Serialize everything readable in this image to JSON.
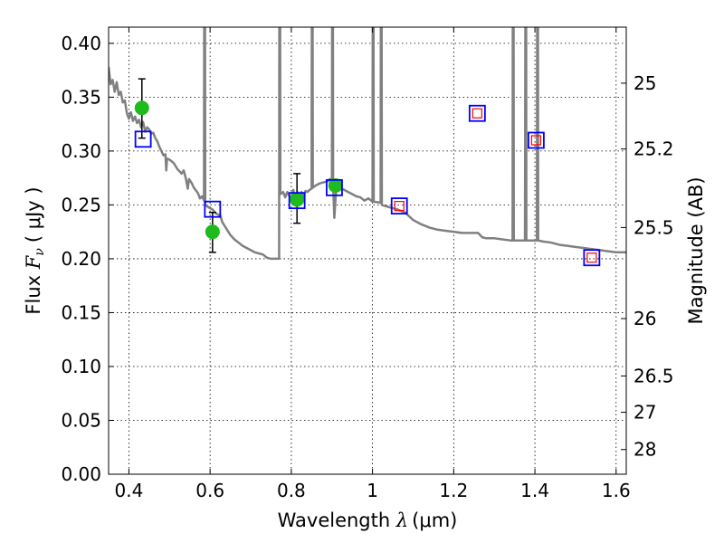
{
  "chart_data": {
    "type": "scatter",
    "xlabel": "Wavelength  λ (μm)",
    "xlabel_parts": {
      "text": "Wavelength  ",
      "symbol": "λ",
      "unit": "(μm)"
    },
    "ylabel": "Flux  Fν  ( μJy )",
    "ylabel_parts": {
      "text": "Flux  ",
      "symbol": "F",
      "sub": "ν",
      "unit": "( μJy )"
    },
    "y2label": "Magnitude (AB)",
    "xlim": [
      0.35,
      1.625
    ],
    "ylim": [
      0.0,
      0.415
    ],
    "grid": true,
    "xticks": [
      {
        "value": 0.4,
        "label": "0.4"
      },
      {
        "value": 0.6,
        "label": "0.6"
      },
      {
        "value": 0.8,
        "label": "0.8"
      },
      {
        "value": 1.0,
        "label": "1"
      },
      {
        "value": 1.2,
        "label": "1.2"
      },
      {
        "value": 1.4,
        "label": "1.4"
      },
      {
        "value": 1.6,
        "label": "1.6"
      }
    ],
    "yticks": [
      {
        "value": 0.0,
        "label": "0.00"
      },
      {
        "value": 0.05,
        "label": "0.05"
      },
      {
        "value": 0.1,
        "label": "0.10"
      },
      {
        "value": 0.15,
        "label": "0.15"
      },
      {
        "value": 0.2,
        "label": "0.20"
      },
      {
        "value": 0.25,
        "label": "0.25"
      },
      {
        "value": 0.3,
        "label": "0.30"
      },
      {
        "value": 0.35,
        "label": "0.35"
      },
      {
        "value": 0.4,
        "label": "0.40"
      }
    ],
    "y2ticks": [
      {
        "label": "25",
        "flux": 0.363
      },
      {
        "label": "25.2",
        "flux": 0.3019
      },
      {
        "label": "25.5",
        "flux": 0.229
      },
      {
        "label": "26",
        "flux": 0.1445
      },
      {
        "label": "26.5",
        "flux": 0.0912
      },
      {
        "label": "27",
        "flux": 0.0575
      },
      {
        "label": "28",
        "flux": 0.0229
      }
    ],
    "series": [
      {
        "name": "model-spectrum",
        "kind": "line",
        "color": "#808080",
        "points": [
          [
            0.35,
            0.378
          ],
          [
            0.355,
            0.362
          ],
          [
            0.36,
            0.366
          ],
          [
            0.365,
            0.355
          ],
          [
            0.37,
            0.364
          ],
          [
            0.375,
            0.352
          ],
          [
            0.38,
            0.355
          ],
          [
            0.385,
            0.345
          ],
          [
            0.39,
            0.347
          ],
          [
            0.395,
            0.335
          ],
          [
            0.4,
            0.33
          ],
          [
            0.405,
            0.336
          ],
          [
            0.41,
            0.328
          ],
          [
            0.415,
            0.332
          ],
          [
            0.42,
            0.326
          ],
          [
            0.425,
            0.329
          ],
          [
            0.43,
            0.322
          ],
          [
            0.435,
            0.327
          ],
          [
            0.44,
            0.318
          ],
          [
            0.445,
            0.322
          ],
          [
            0.45,
            0.32
          ],
          [
            0.455,
            0.316
          ],
          [
            0.46,
            0.317
          ],
          [
            0.465,
            0.312
          ],
          [
            0.47,
            0.309
          ],
          [
            0.475,
            0.304
          ],
          [
            0.48,
            0.3
          ],
          [
            0.485,
            0.296
          ],
          [
            0.49,
            0.297
          ],
          [
            0.492,
            0.282
          ],
          [
            0.494,
            0.293
          ],
          [
            0.5,
            0.292
          ],
          [
            0.51,
            0.289
          ],
          [
            0.52,
            0.283
          ],
          [
            0.53,
            0.279
          ],
          [
            0.535,
            0.282
          ],
          [
            0.54,
            0.275
          ],
          [
            0.545,
            0.265
          ],
          [
            0.548,
            0.274
          ],
          [
            0.555,
            0.27
          ],
          [
            0.56,
            0.266
          ],
          [
            0.57,
            0.261
          ],
          [
            0.575,
            0.256
          ],
          [
            0.58,
            0.258
          ],
          [
            0.585,
            0.254
          ],
          [
            0.5855,
            0.415
          ],
          [
            0.5875,
            0.415
          ],
          [
            0.588,
            0.25
          ],
          [
            0.595,
            0.248
          ],
          [
            0.605,
            0.246
          ],
          [
            0.615,
            0.242
          ],
          [
            0.625,
            0.24
          ],
          [
            0.63,
            0.234
          ],
          [
            0.64,
            0.228
          ],
          [
            0.65,
            0.222
          ],
          [
            0.66,
            0.218
          ],
          [
            0.67,
            0.215
          ],
          [
            0.68,
            0.212
          ],
          [
            0.69,
            0.21
          ],
          [
            0.7,
            0.208
          ],
          [
            0.71,
            0.206
          ],
          [
            0.72,
            0.205
          ],
          [
            0.73,
            0.204
          ],
          [
            0.74,
            0.201
          ],
          [
            0.75,
            0.2
          ],
          [
            0.765,
            0.2
          ],
          [
            0.77,
            0.2
          ],
          [
            0.7705,
            0.415
          ],
          [
            0.7725,
            0.415
          ],
          [
            0.773,
            0.26
          ],
          [
            0.78,
            0.262
          ],
          [
            0.785,
            0.257
          ],
          [
            0.79,
            0.262
          ],
          [
            0.8,
            0.255
          ],
          [
            0.805,
            0.264
          ],
          [
            0.81,
            0.252
          ],
          [
            0.815,
            0.262
          ],
          [
            0.82,
            0.25
          ],
          [
            0.825,
            0.262
          ],
          [
            0.83,
            0.258
          ],
          [
            0.835,
            0.263
          ],
          [
            0.84,
            0.262
          ],
          [
            0.845,
            0.264
          ],
          [
            0.85,
            0.265
          ],
          [
            0.8505,
            0.415
          ],
          [
            0.8525,
            0.415
          ],
          [
            0.853,
            0.266
          ],
          [
            0.86,
            0.268
          ],
          [
            0.87,
            0.27
          ],
          [
            0.88,
            0.271
          ],
          [
            0.89,
            0.272
          ],
          [
            0.895,
            0.274
          ],
          [
            0.9,
            0.27
          ],
          [
            0.9005,
            0.415
          ],
          [
            0.9025,
            0.415
          ],
          [
            0.903,
            0.268
          ],
          [
            0.906,
            0.238
          ],
          [
            0.91,
            0.262
          ],
          [
            0.92,
            0.266
          ],
          [
            0.93,
            0.264
          ],
          [
            0.94,
            0.262
          ],
          [
            0.95,
            0.26
          ],
          [
            0.96,
            0.258
          ],
          [
            0.97,
            0.257
          ],
          [
            0.98,
            0.254
          ],
          [
            0.99,
            0.256
          ],
          [
            1.0,
            0.253
          ],
          [
            1.0005,
            0.415
          ],
          [
            1.0025,
            0.415
          ],
          [
            1.003,
            0.253
          ],
          [
            1.02,
            0.252
          ],
          [
            1.0205,
            0.415
          ],
          [
            1.0225,
            0.415
          ],
          [
            1.023,
            0.25
          ],
          [
            1.04,
            0.248
          ],
          [
            1.06,
            0.246
          ],
          [
            1.08,
            0.243
          ],
          [
            1.1,
            0.236
          ],
          [
            1.12,
            0.232
          ],
          [
            1.14,
            0.229
          ],
          [
            1.16,
            0.227
          ],
          [
            1.18,
            0.226
          ],
          [
            1.2,
            0.225
          ],
          [
            1.22,
            0.224
          ],
          [
            1.24,
            0.224
          ],
          [
            1.26,
            0.224
          ],
          [
            1.27,
            0.22
          ],
          [
            1.28,
            0.219
          ],
          [
            1.3,
            0.219
          ],
          [
            1.32,
            0.218
          ],
          [
            1.34,
            0.217
          ],
          [
            1.345,
            0.217
          ],
          [
            1.3455,
            0.415
          ],
          [
            1.3475,
            0.415
          ],
          [
            1.348,
            0.217
          ],
          [
            1.37,
            0.217
          ],
          [
            1.375,
            0.217
          ],
          [
            1.3755,
            0.217
          ],
          [
            1.3765,
            0.415
          ],
          [
            1.3785,
            0.415
          ],
          [
            1.379,
            0.217
          ],
          [
            1.39,
            0.217
          ],
          [
            1.4,
            0.217
          ],
          [
            1.405,
            0.217
          ],
          [
            1.4055,
            0.415
          ],
          [
            1.4075,
            0.415
          ],
          [
            1.408,
            0.217
          ],
          [
            1.42,
            0.216
          ],
          [
            1.44,
            0.215
          ],
          [
            1.46,
            0.213
          ],
          [
            1.48,
            0.212
          ],
          [
            1.5,
            0.211
          ],
          [
            1.52,
            0.21
          ],
          [
            1.54,
            0.209
          ],
          [
            1.56,
            0.208
          ],
          [
            1.58,
            0.207
          ],
          [
            1.6,
            0.206
          ],
          [
            1.625,
            0.206
          ]
        ]
      },
      {
        "name": "observed",
        "kind": "points",
        "color": "#1eba1e",
        "points": [
          {
            "x": 0.432,
            "y": 0.34,
            "yerr_low": 0.028,
            "yerr_high": 0.027
          },
          {
            "x": 0.606,
            "y": 0.225,
            "yerr_low": 0.019,
            "yerr_high": 0.018
          },
          {
            "x": 0.814,
            "y": 0.255,
            "yerr_low": 0.022,
            "yerr_high": 0.024
          },
          {
            "x": 0.909,
            "y": 0.268,
            "yerr_low": 0.0,
            "yerr_high": 0.0
          }
        ]
      },
      {
        "name": "model-photometry-blue",
        "kind": "squares",
        "color": "#0000ff",
        "points": [
          [
            0.435,
            0.311
          ],
          [
            0.606,
            0.246
          ],
          [
            0.814,
            0.254
          ],
          [
            0.906,
            0.266
          ],
          [
            1.066,
            0.249
          ],
          [
            1.258,
            0.335
          ],
          [
            1.403,
            0.31
          ],
          [
            1.54,
            0.201
          ]
        ]
      },
      {
        "name": "model-photometry-red",
        "kind": "squares-small",
        "color": "#ff0000",
        "points": [
          [
            1.066,
            0.249
          ],
          [
            1.258,
            0.335
          ],
          [
            1.403,
            0.31
          ],
          [
            1.54,
            0.201
          ]
        ]
      }
    ]
  }
}
